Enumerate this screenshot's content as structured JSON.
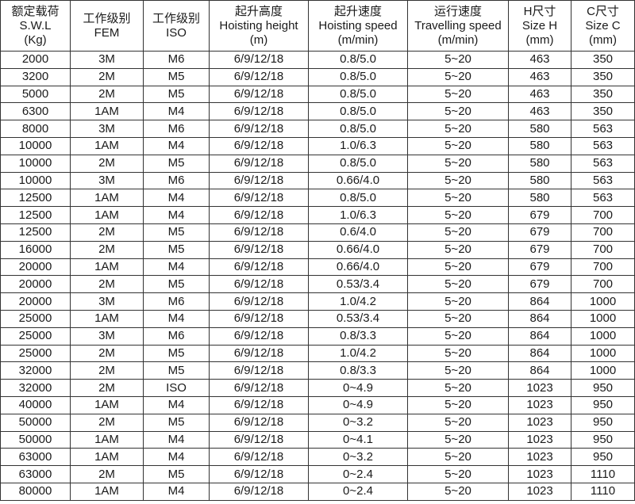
{
  "headers": [
    [
      "额定载荷",
      "S.W.L",
      "(Kg)"
    ],
    [
      "工作级别",
      "FEM"
    ],
    [
      "工作级别",
      "ISO"
    ],
    [
      "起升高度",
      "Hoisting height",
      "(m)"
    ],
    [
      "起升速度",
      "Hoisting speed",
      "(m/min)"
    ],
    [
      "运行速度",
      "Travelling speed",
      "(m/min)"
    ],
    [
      "H尺寸",
      "Size H",
      "(mm)"
    ],
    [
      "C尺寸",
      "Size C",
      "(mm)"
    ]
  ],
  "rows": [
    [
      "2000",
      "3M",
      "M6",
      "6/9/12/18",
      "0.8/5.0",
      "5~20",
      "463",
      "350"
    ],
    [
      "3200",
      "2M",
      "M5",
      "6/9/12/18",
      "0.8/5.0",
      "5~20",
      "463",
      "350"
    ],
    [
      "5000",
      "2M",
      "M5",
      "6/9/12/18",
      "0.8/5.0",
      "5~20",
      "463",
      "350"
    ],
    [
      "6300",
      "1AM",
      "M4",
      "6/9/12/18",
      "0.8/5.0",
      "5~20",
      "463",
      "350"
    ],
    [
      "8000",
      "3M",
      "M6",
      "6/9/12/18",
      "0.8/5.0",
      "5~20",
      "580",
      "563"
    ],
    [
      "10000",
      "1AM",
      "M4",
      "6/9/12/18",
      "1.0/6.3",
      "5~20",
      "580",
      "563"
    ],
    [
      "10000",
      "2M",
      "M5",
      "6/9/12/18",
      "0.8/5.0",
      "5~20",
      "580",
      "563"
    ],
    [
      "10000",
      "3M",
      "M6",
      "6/9/12/18",
      "0.66/4.0",
      "5~20",
      "580",
      "563"
    ],
    [
      "12500",
      "1AM",
      "M4",
      "6/9/12/18",
      "0.8/5.0",
      "5~20",
      "580",
      "563"
    ],
    [
      "12500",
      "1AM",
      "M4",
      "6/9/12/18",
      "1.0/6.3",
      "5~20",
      "679",
      "700"
    ],
    [
      "12500",
      "2M",
      "M5",
      "6/9/12/18",
      "0.6/4.0",
      "5~20",
      "679",
      "700"
    ],
    [
      "16000",
      "2M",
      "M5",
      "6/9/12/18",
      "0.66/4.0",
      "5~20",
      "679",
      "700"
    ],
    [
      "20000",
      "1AM",
      "M4",
      "6/9/12/18",
      "0.66/4.0",
      "5~20",
      "679",
      "700"
    ],
    [
      "20000",
      "2M",
      "M5",
      "6/9/12/18",
      "0.53/3.4",
      "5~20",
      "679",
      "700"
    ],
    [
      "20000",
      "3M",
      "M6",
      "6/9/12/18",
      "1.0/4.2",
      "5~20",
      "864",
      "1000"
    ],
    [
      "25000",
      "1AM",
      "M4",
      "6/9/12/18",
      "0.53/3.4",
      "5~20",
      "864",
      "1000"
    ],
    [
      "25000",
      "3M",
      "M6",
      "6/9/12/18",
      "0.8/3.3",
      "5~20",
      "864",
      "1000"
    ],
    [
      "25000",
      "2M",
      "M5",
      "6/9/12/18",
      "1.0/4.2",
      "5~20",
      "864",
      "1000"
    ],
    [
      "32000",
      "2M",
      "M5",
      "6/9/12/18",
      "0.8/3.3",
      "5~20",
      "864",
      "1000"
    ],
    [
      "32000",
      "2M",
      "ISO",
      "6/9/12/18",
      "0~4.9",
      "5~20",
      "1023",
      "950"
    ],
    [
      "40000",
      "1AM",
      "M4",
      "6/9/12/18",
      "0~4.9",
      "5~20",
      "1023",
      "950"
    ],
    [
      "50000",
      "2M",
      "M5",
      "6/9/12/18",
      "0~3.2",
      "5~20",
      "1023",
      "950"
    ],
    [
      "50000",
      "1AM",
      "M4",
      "6/9/12/18",
      "0~4.1",
      "5~20",
      "1023",
      "950"
    ],
    [
      "63000",
      "1AM",
      "M4",
      "6/9/12/18",
      "0~3.2",
      "5~20",
      "1023",
      "950"
    ],
    [
      "63000",
      "2M",
      "M5",
      "6/9/12/18",
      "0~2.4",
      "5~20",
      "1023",
      "1110"
    ],
    [
      "80000",
      "1AM",
      "M4",
      "6/9/12/18",
      "0~2.4",
      "5~20",
      "1023",
      "1110"
    ]
  ]
}
